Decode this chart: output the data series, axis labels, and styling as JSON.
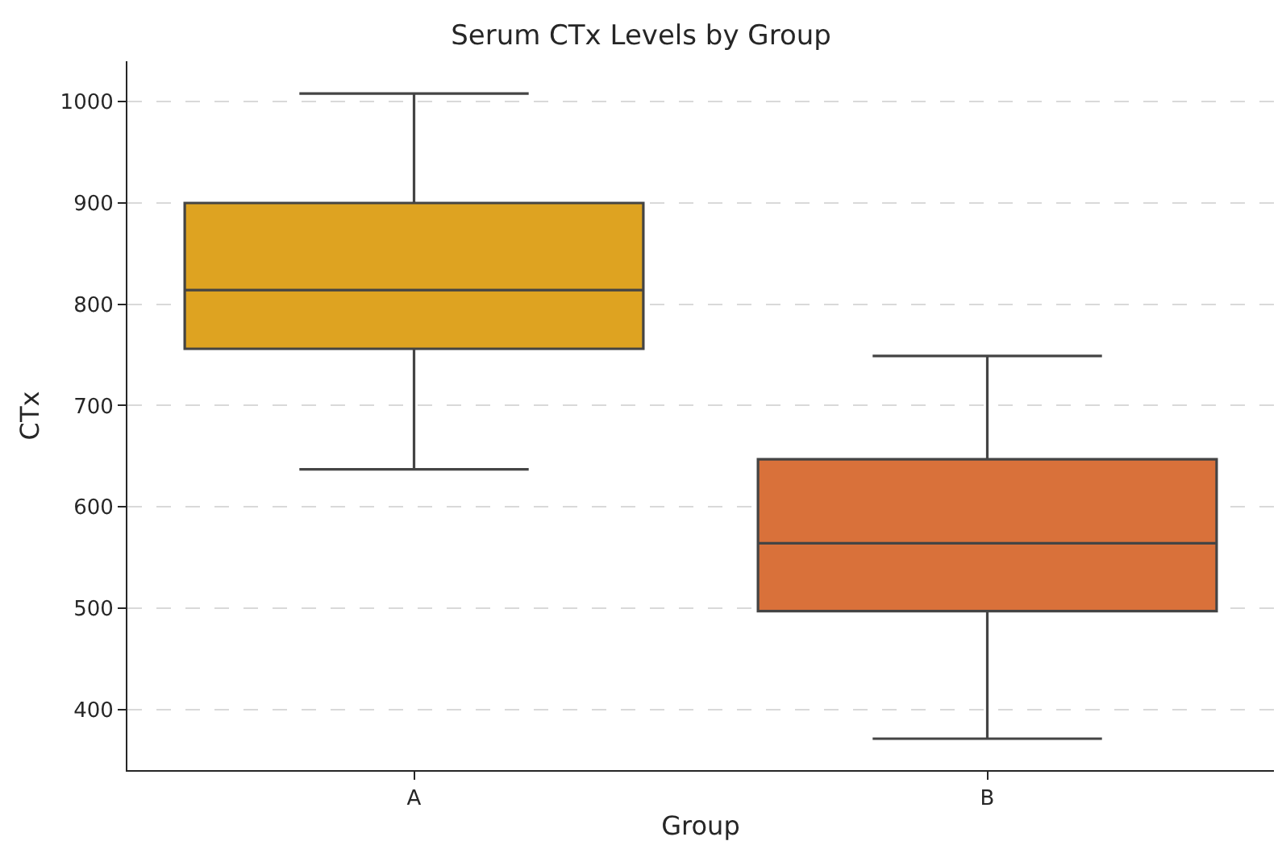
{
  "chart_data": {
    "type": "box",
    "title": "Serum CTx Levels by Group",
    "xlabel": "Group",
    "ylabel": "CTx",
    "categories": [
      "A",
      "B"
    ],
    "boxes": [
      {
        "low": 637,
        "q1": 756,
        "median": 814,
        "q3": 900,
        "high": 1008
      },
      {
        "low": 371,
        "q1": 497,
        "median": 564,
        "q3": 647,
        "high": 749
      }
    ],
    "colors": [
      "#dea321",
      "#d9713a"
    ],
    "ylim": [
      340,
      1040
    ],
    "yticks": [
      400,
      500,
      600,
      700,
      800,
      900,
      1000
    ],
    "grid": "y"
  }
}
